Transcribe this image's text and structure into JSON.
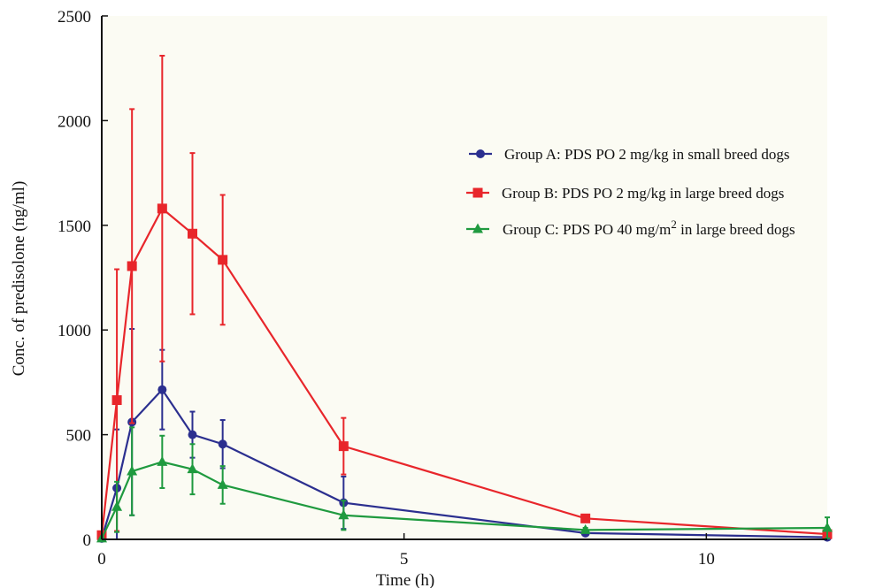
{
  "chart_data": {
    "type": "line",
    "xlabel": "Time (h)",
    "ylabel": "Conc. of predisolone (ng/ml)",
    "xlim": [
      0,
      12
    ],
    "ylim": [
      0,
      2500
    ],
    "x_ticks": [
      0,
      5,
      10
    ],
    "y_ticks": [
      0,
      500,
      1000,
      1500,
      2000,
      2500
    ],
    "grid": false,
    "legend_position": "right",
    "series": [
      {
        "name": "Group A: PDS PO 2 mg/kg in small breed dogs",
        "legend_main": "Group A: PDS PO 2 mg/kg in small breed dogs",
        "color": "#2b2f8f",
        "marker": "circle",
        "x": [
          0,
          0.25,
          0.5,
          1,
          1.5,
          2,
          4,
          8,
          12
        ],
        "y": [
          5,
          245,
          560,
          715,
          500,
          455,
          175,
          30,
          10
        ],
        "err": [
          0,
          280,
          445,
          190,
          110,
          115,
          125,
          10,
          5
        ]
      },
      {
        "name": "Group B: PDS PO 2 mg/kg in large  breed dogs",
        "legend_main": "Group B: PDS PO 2 mg/kg in large  breed dogs",
        "color": "#e8262b",
        "marker": "square",
        "x": [
          0,
          0.25,
          0.5,
          1,
          1.5,
          2,
          4,
          8,
          12
        ],
        "y": [
          20,
          665,
          1305,
          1580,
          1460,
          1335,
          445,
          100,
          25
        ],
        "err": [
          5,
          625,
          750,
          730,
          385,
          310,
          135,
          15,
          5
        ]
      },
      {
        "name": "Group C: PDS PO 40  mg/m2  in large  breed dogs",
        "legend_main": "Group C: PDS PO 40  mg/m",
        "legend_sup": "2",
        "legend_tail": "  in large  breed dogs",
        "color": "#1f9a3f",
        "marker": "triangle",
        "x": [
          0,
          0.25,
          0.5,
          1,
          1.5,
          2,
          4,
          8,
          12
        ],
        "y": [
          5,
          155,
          325,
          370,
          335,
          260,
          115,
          45,
          55
        ],
        "err": [
          0,
          120,
          210,
          125,
          120,
          90,
          70,
          10,
          50
        ]
      }
    ]
  }
}
